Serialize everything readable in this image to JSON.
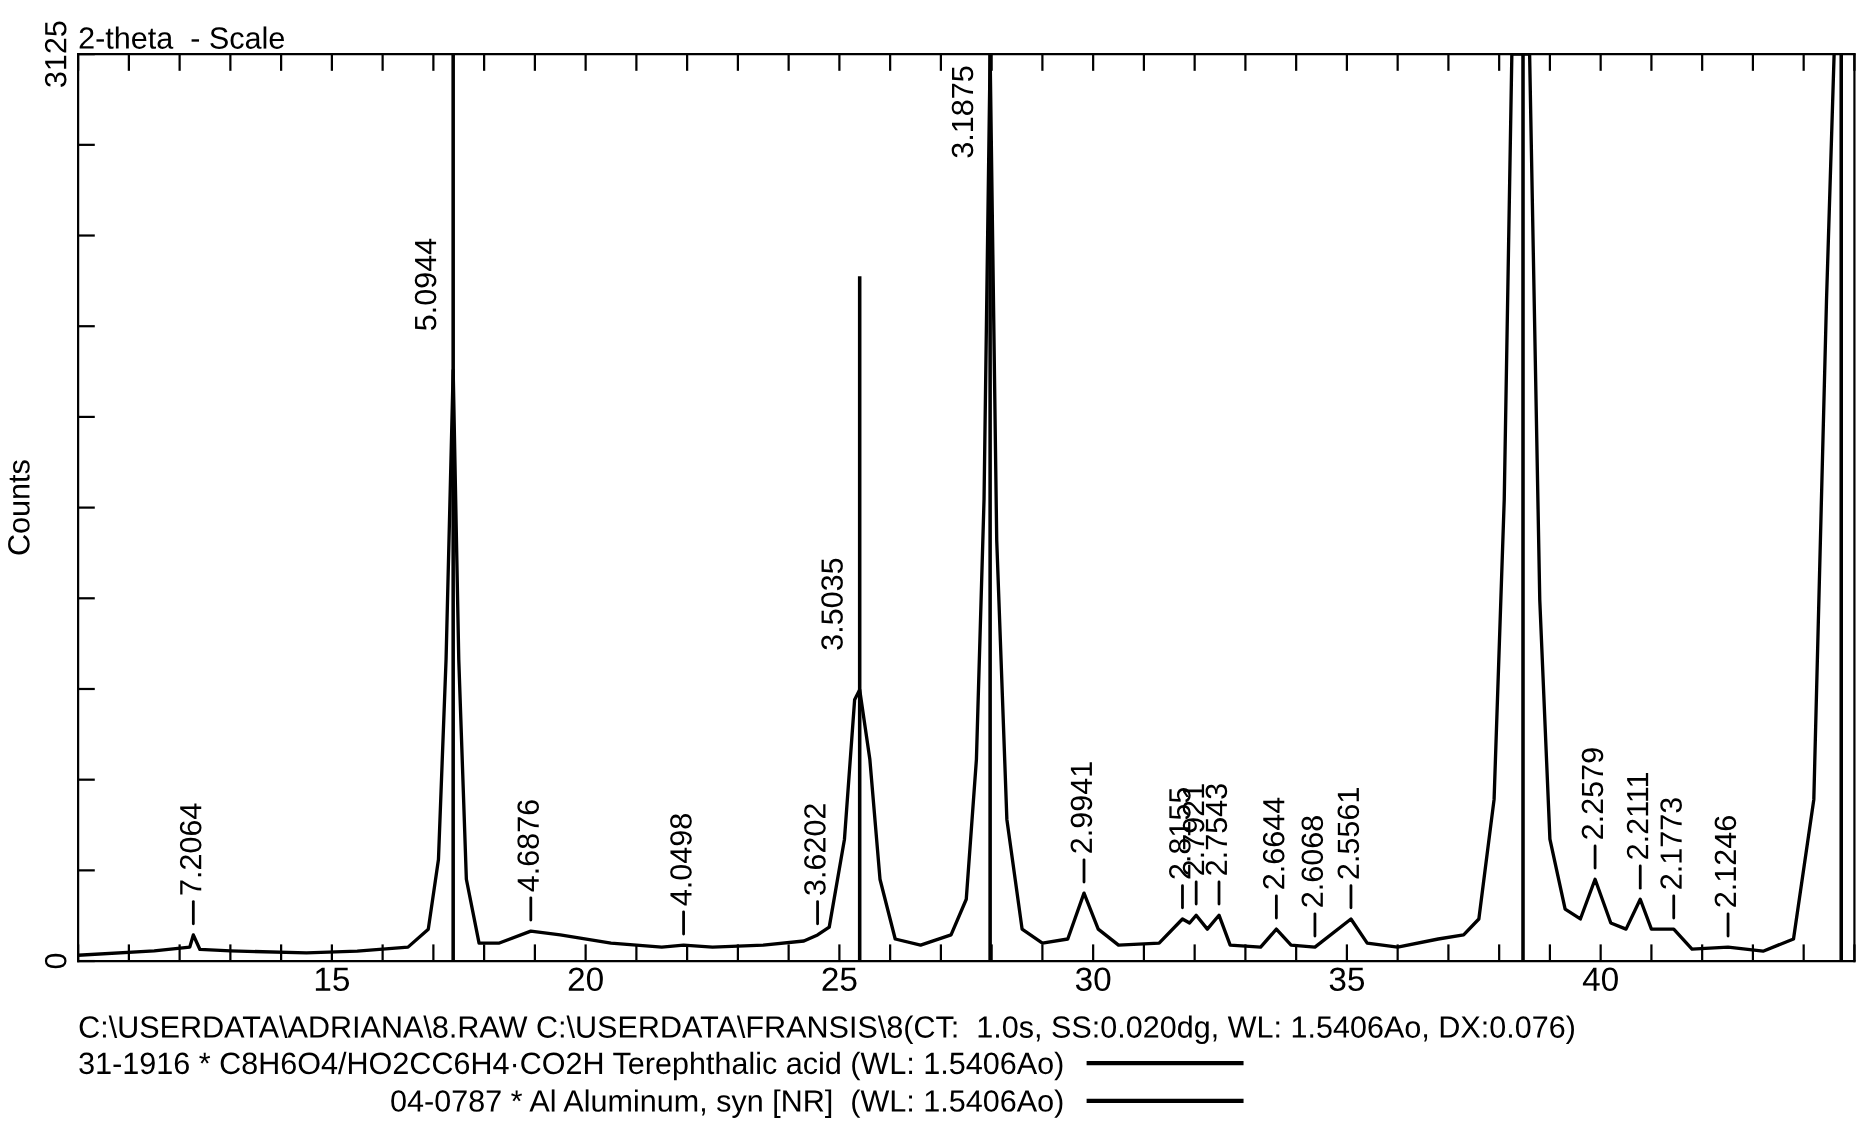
{
  "chart_data": {
    "type": "line",
    "xlabel": "2-theta  - Scale",
    "ylabel": "Counts",
    "xlim": [
      10,
      45
    ],
    "ylim": [
      0,
      3125
    ],
    "xticks": [
      {
        "value": 10,
        "label": null
      },
      {
        "value": 11,
        "label": null
      },
      {
        "value": 12,
        "label": null
      },
      {
        "value": 13,
        "label": null
      },
      {
        "value": 14,
        "label": null
      },
      15,
      {
        "value": 16,
        "label": null
      },
      {
        "value": 17,
        "label": null
      },
      {
        "value": 18,
        "label": null
      },
      {
        "value": 19,
        "label": null
      },
      20,
      {
        "value": 21,
        "label": null
      },
      {
        "value": 22,
        "label": null
      },
      {
        "value": 23,
        "label": null
      },
      {
        "value": 24,
        "label": null
      },
      25,
      {
        "value": 26,
        "label": null
      },
      {
        "value": 27,
        "label": null
      },
      {
        "value": 28,
        "label": null
      },
      {
        "value": 29,
        "label": null
      },
      30,
      {
        "value": 31,
        "label": null
      },
      {
        "value": 32,
        "label": null
      },
      {
        "value": 33,
        "label": null
      },
      {
        "value": 34,
        "label": null
      },
      35,
      {
        "value": 36,
        "label": null
      },
      {
        "value": 37,
        "label": null
      },
      {
        "value": 38,
        "label": null
      },
      {
        "value": 39,
        "label": null
      },
      40,
      {
        "value": 41,
        "label": null
      },
      {
        "value": 42,
        "label": null
      },
      {
        "value": 43,
        "label": null
      },
      {
        "value": 44,
        "label": null
      },
      {
        "value": 45,
        "label": null
      }
    ],
    "yticks": [
      0,
      {
        "value": 312.5,
        "label": null
      },
      {
        "value": 625,
        "label": null
      },
      {
        "value": 937.5,
        "label": null
      },
      {
        "value": 1250,
        "label": null
      },
      {
        "value": 1562.5,
        "label": null
      },
      {
        "value": 1875,
        "label": null
      },
      {
        "value": 2187.5,
        "label": null
      },
      {
        "value": 2500,
        "label": null
      },
      {
        "value": 2812.5,
        "label": null
      },
      3125
    ],
    "grid": false,
    "legend": "bottom left",
    "series": [
      {
        "color": "#000000",
        "marker": "none",
        "line_style": "solid",
        "x": [
          10.0,
          11.5,
          12.2,
          12.27,
          12.4,
          13.0,
          14.5,
          15.5,
          16.5,
          16.9,
          17.1,
          17.25,
          17.39,
          17.5,
          17.65,
          17.9,
          18.3,
          18.92,
          19.5,
          20.5,
          21.5,
          21.93,
          22.5,
          23.5,
          24.3,
          24.57,
          24.8,
          25.1,
          25.3,
          25.4,
          25.6,
          25.8,
          26.1,
          26.6,
          27.2,
          27.5,
          27.7,
          27.85,
          27.97,
          28.1,
          28.3,
          28.6,
          29.0,
          29.5,
          29.82,
          30.1,
          30.5,
          31.3,
          31.76,
          31.9,
          32.03,
          32.25,
          32.48,
          32.7,
          33.3,
          33.61,
          33.9,
          34.37,
          35.08,
          35.4,
          36.0,
          36.8,
          37.3,
          37.6,
          37.9,
          38.1,
          38.25,
          38.6,
          38.8,
          39.0,
          39.3,
          39.6,
          39.89,
          40.2,
          40.5,
          40.78,
          41.0,
          41.44,
          41.8,
          42.51,
          43.2,
          43.8,
          44.2,
          44.45,
          44.6
        ],
        "values": [
          20,
          35,
          48,
          90,
          40,
          35,
          28,
          34,
          48,
          110,
          350,
          1040,
          2036,
          1040,
          282,
          62,
          62,
          103,
          90,
          62,
          48,
          55,
          48,
          55,
          69,
          90,
          117,
          420,
          900,
          935,
          695,
          282,
          76,
          55,
          90,
          213,
          695,
          1590,
          3125,
          1450,
          488,
          110,
          62,
          76,
          234,
          110,
          55,
          62,
          145,
          131,
          158,
          110,
          158,
          55,
          48,
          110,
          55,
          48,
          145,
          62,
          48,
          76,
          90,
          145,
          557,
          1590,
          3125,
          3125,
          1245,
          420,
          179,
          145,
          282,
          131,
          110,
          213,
          110,
          110,
          41,
          48,
          34,
          76,
          557,
          2277,
          3125
        ]
      },
      {
        "type": "bar",
        "name": "31-1916 * C8H6O4/HO2CC6H4·CO2H Terephthalic acid (WL: 1.5406Ao)",
        "color": "#000000",
        "marker": "none",
        "x": [
          17.39,
          25.4,
          27.97
        ],
        "values": [
          3125,
          2360,
          3125
        ]
      },
      {
        "type": "bar",
        "name": "04-0787 * Al Aluminum, syn [NR]  (WL: 1.5406Ao)",
        "color": "#000000",
        "marker": "none",
        "x": [
          38.47,
          44.74
        ],
        "values": [
          3125,
          3125
        ]
      }
    ],
    "annotations": [
      "C:\\USERDATA\\ADRIANA\\8.RAW C:\\USERDATA\\FRANSIS\\8(CT:  1.0s, SS:0.020dg, WL: 1.5406Ao, DX:0.076)",
      {
        "text": "7.2064",
        "x": 12.27,
        "y": 90
      },
      {
        "text": "5.0944",
        "x": 17.39,
        "y": 2036
      },
      {
        "text": "4.6876",
        "x": 18.92,
        "y": 103
      },
      {
        "text": "4.0498",
        "x": 21.93,
        "y": 55
      },
      {
        "text": "3.6202",
        "x": 24.57,
        "y": 90
      },
      {
        "text": "3.5035",
        "x": 25.4,
        "y": 935
      },
      {
        "text": "3.1875",
        "x": 27.97,
        "y": 3125
      },
      {
        "text": "2.9941",
        "x": 29.82,
        "y": 234
      },
      {
        "text": "2.8155",
        "x": 31.76,
        "y": 145
      },
      {
        "text": "2.7921",
        "x": 32.03,
        "y": 158
      },
      {
        "text": "2.7543",
        "x": 32.48,
        "y": 158
      },
      {
        "text": "2.6644",
        "x": 33.61,
        "y": 110
      },
      {
        "text": "2.6068",
        "x": 34.37,
        "y": 48
      },
      {
        "text": "2.5561",
        "x": 35.08,
        "y": 145
      },
      {
        "text": "2.2579",
        "x": 39.89,
        "y": 282
      },
      {
        "text": "2.2111",
        "x": 40.78,
        "y": 213
      },
      {
        "text": "2.1773",
        "x": 41.44,
        "y": 110
      },
      {
        "text": "2.1246",
        "x": 42.51,
        "y": 48
      }
    ]
  }
}
